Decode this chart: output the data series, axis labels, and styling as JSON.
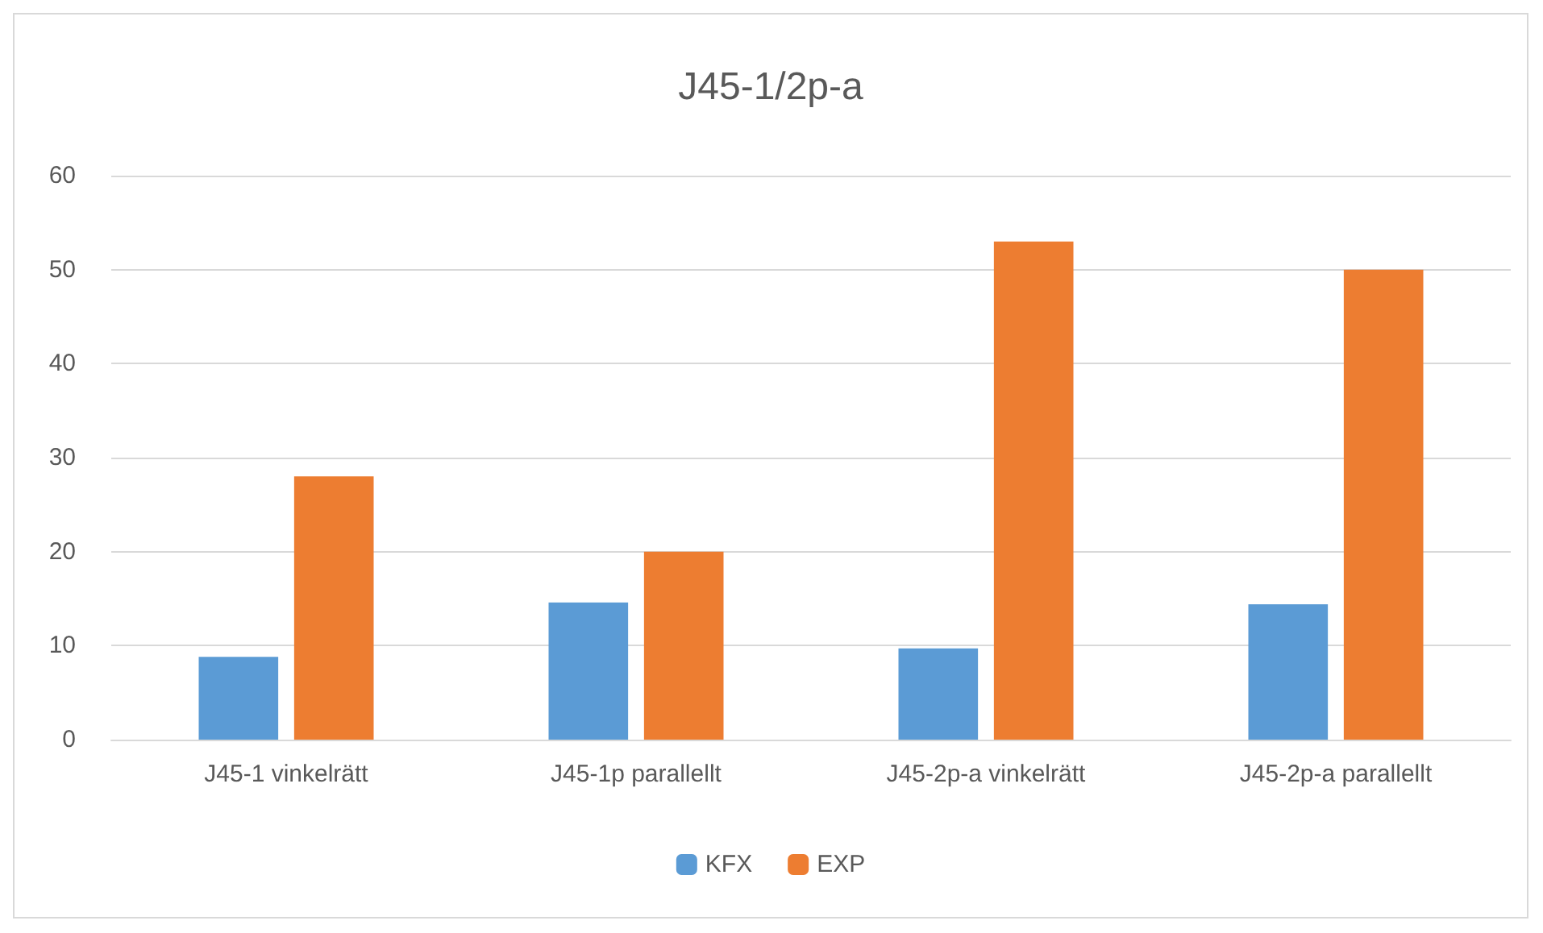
{
  "chart_data": {
    "type": "bar",
    "title": "J45-1/2p-a",
    "categories": [
      "J45-1 vinkelrätt",
      "J45-1p parallellt",
      "J45-2p-a vinkelrätt",
      "J45-2p-a parallellt"
    ],
    "series": [
      {
        "name": "KFX",
        "color": "#5b9bd5",
        "values": [
          8.8,
          14.6,
          9.7,
          14.4
        ]
      },
      {
        "name": "EXP",
        "color": "#ed7d31",
        "values": [
          28,
          20,
          53,
          50
        ]
      }
    ],
    "ylim": [
      0,
      60
    ],
    "yticks": [
      0,
      10,
      20,
      30,
      40,
      50,
      60
    ],
    "grid": "y",
    "legend": "bottom"
  }
}
